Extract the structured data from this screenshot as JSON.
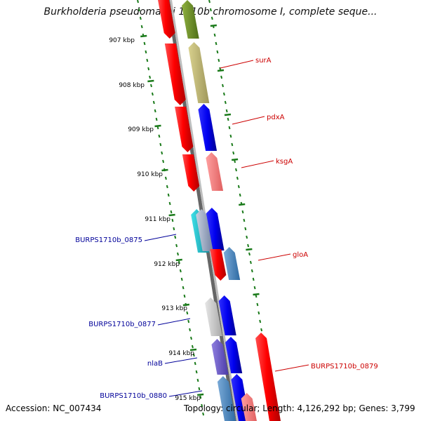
{
  "title": "Burkholderia pseudomallei 1710b chromosome I, complete seque...",
  "footer": {
    "accession": "Accession: NC_007434",
    "summary": "Topology: circular; Length: 4,126,292 bp; Genes: 3,799"
  },
  "ticks": [
    "907 kbp",
    "908 kbp",
    "909 kbp",
    "910 kbp",
    "911 kbp",
    "912 kbp",
    "913 kbp",
    "914 kbp",
    "915 kbp"
  ],
  "colors": {
    "forward_label": "#cc0000",
    "reverse_label": "#000099",
    "tick": "#1a7a1a",
    "backbone": "#777777"
  },
  "labels": {
    "right": [
      {
        "text": "surA"
      },
      {
        "text": "pdxA"
      },
      {
        "text": "ksgA"
      },
      {
        "text": "gloA"
      },
      {
        "text": "BURPS1710b_0879"
      }
    ],
    "left": [
      {
        "text": "BURPS1710b_0875"
      },
      {
        "text": "BURPS1710b_0877"
      },
      {
        "text": "nlaB"
      },
      {
        "text": "BURPS1710b_0880"
      }
    ]
  }
}
